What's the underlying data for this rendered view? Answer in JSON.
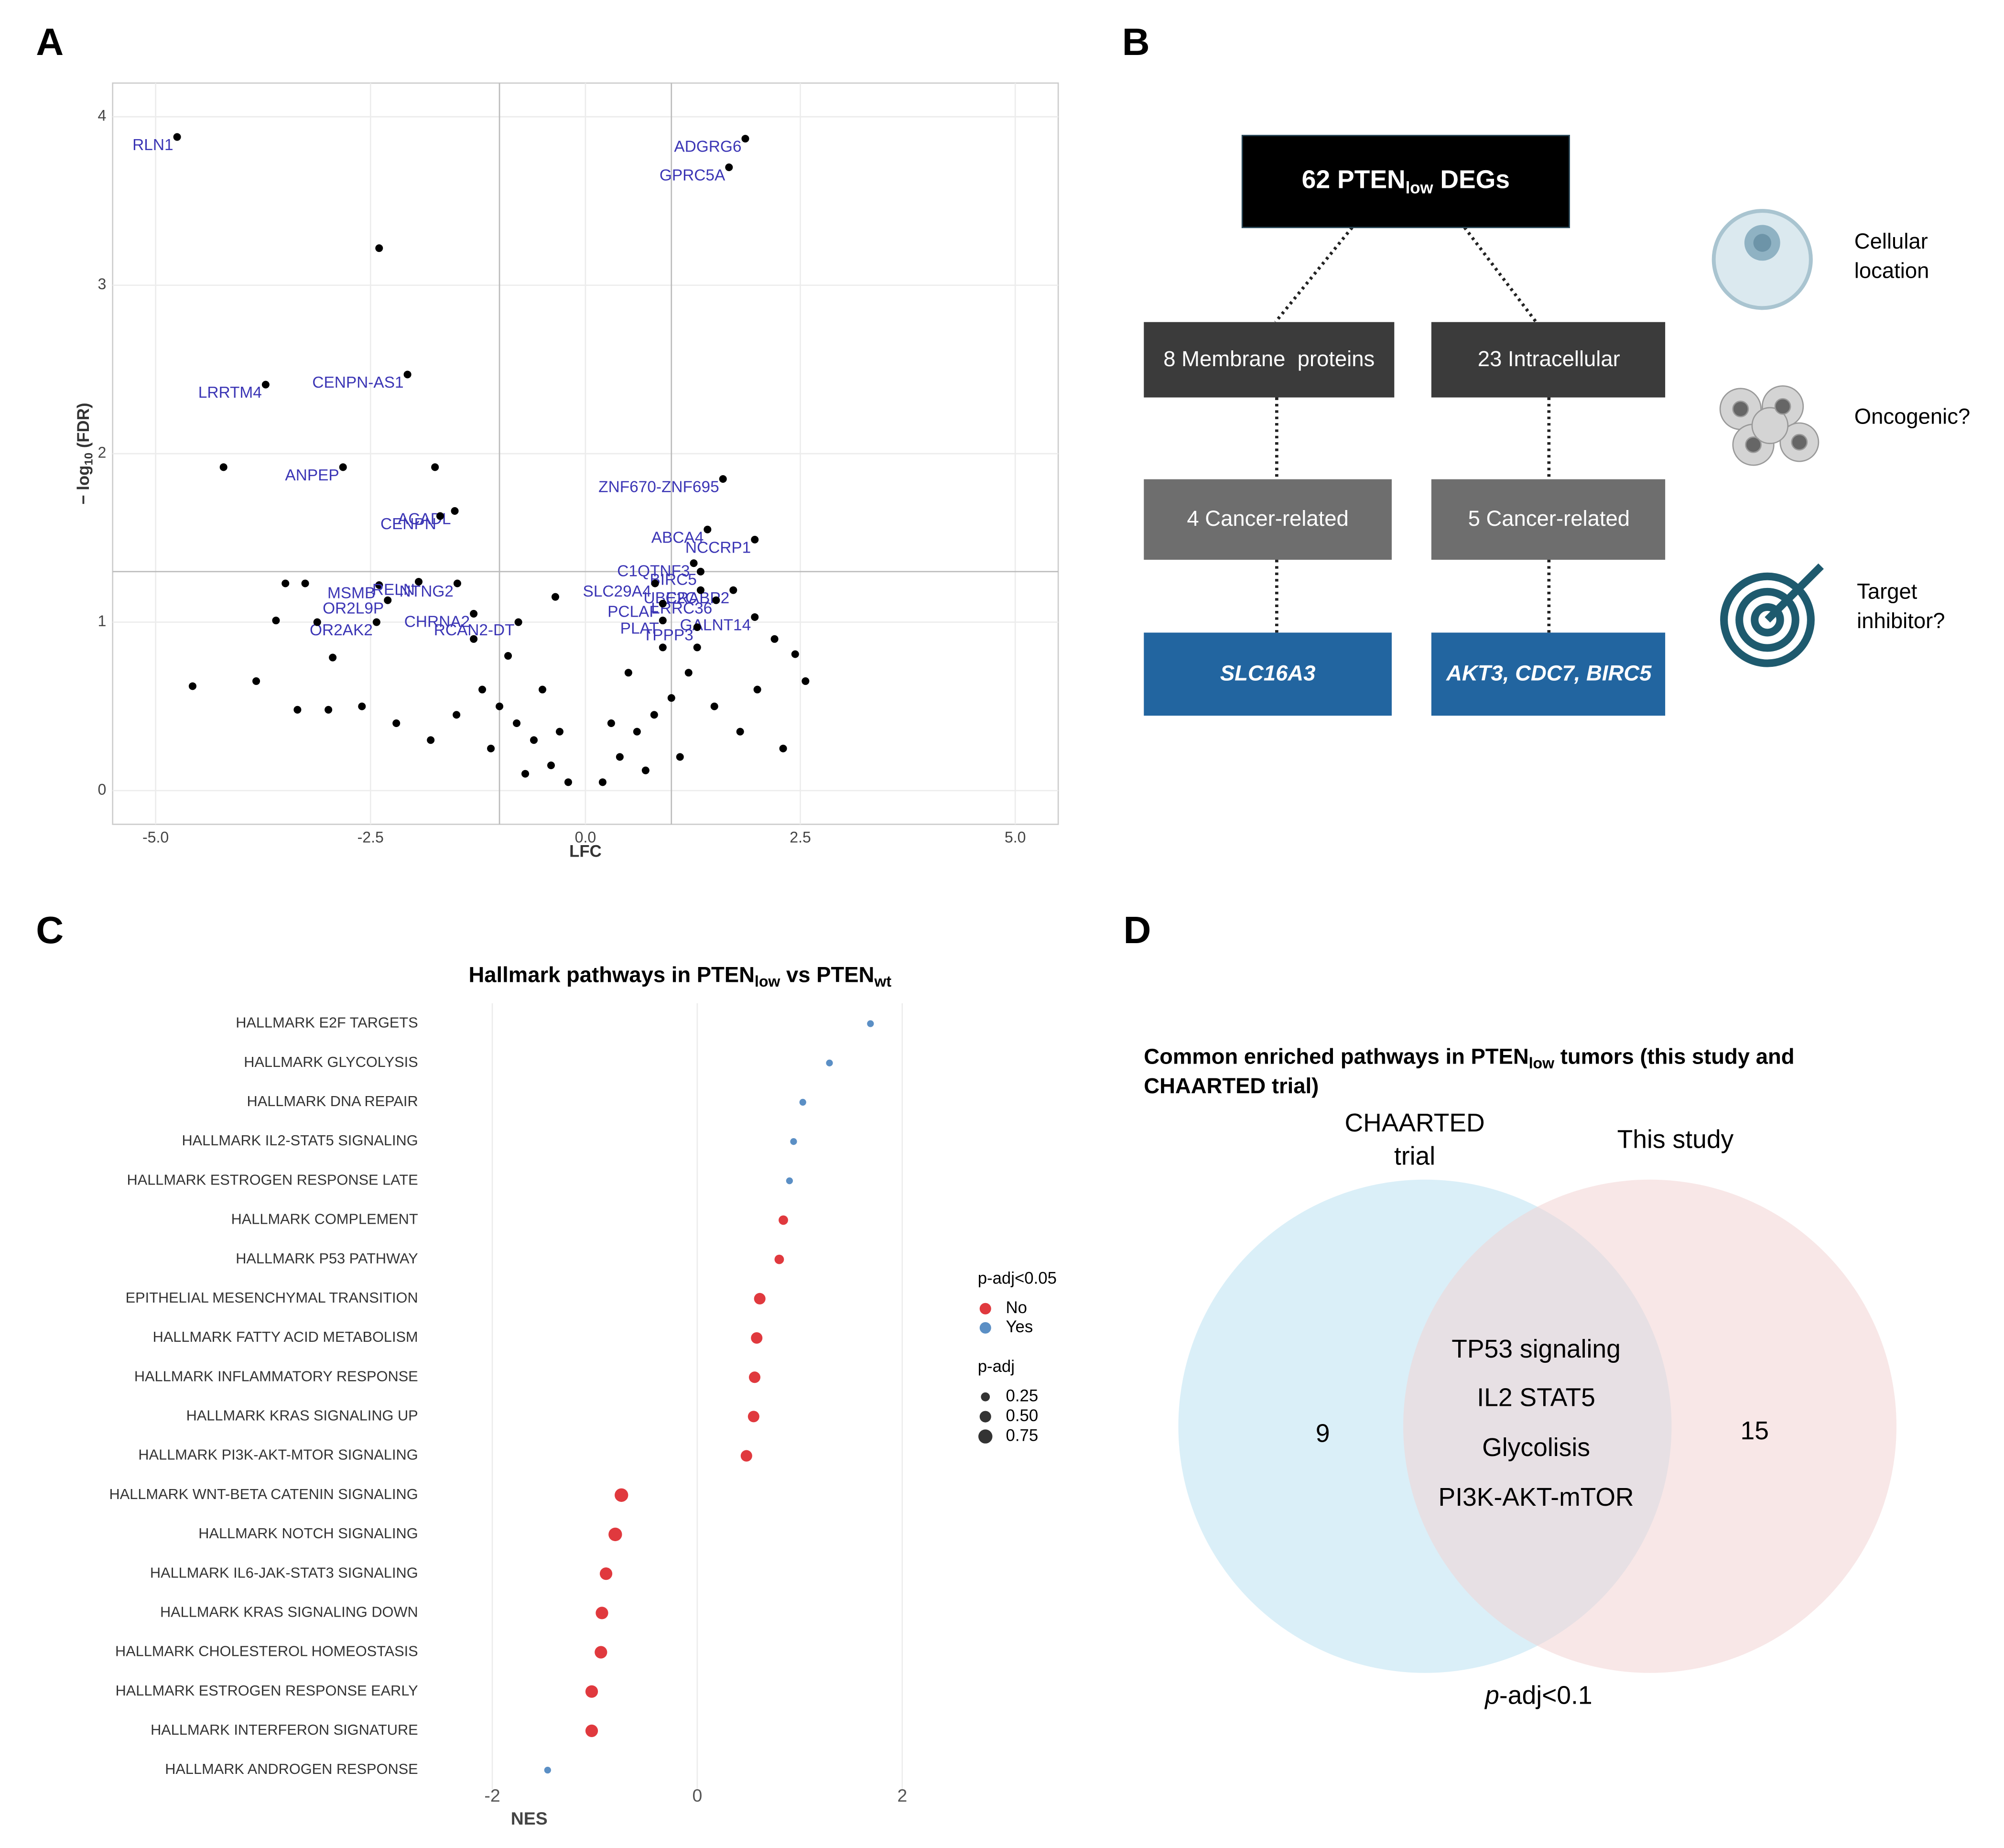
{
  "panel_labels": [
    "A",
    "B",
    "C",
    "D"
  ],
  "chart_data": [
    {
      "type": "scatter",
      "x_label": "LFC",
      "y_label": [
        "− log",
        "10",
        " (FDR)"
      ],
      "xlim": [
        -5.5,
        5.5
      ],
      "ylim": [
        -0.2,
        4.2
      ],
      "xticks": [
        {
          "value": -5,
          "label": "-5.0"
        },
        {
          "value": -2.5,
          "label": "-2.5"
        },
        {
          "value": 0,
          "label": "0.0"
        },
        {
          "value": 2.5,
          "label": "2.5"
        },
        {
          "value": 5,
          "label": "5.0"
        }
      ],
      "yticks": [
        0,
        1,
        2,
        3,
        4
      ],
      "grid": true,
      "color": "#000000",
      "label_color": "#3b35b5",
      "reference_lines": {
        "x": [
          -1,
          1
        ],
        "y": [
          1.3
        ]
      },
      "x": [
        -4.75,
        1.86,
        1.67,
        -3.72,
        -2.07,
        -2.82,
        -1.52,
        -1.69,
        1.6,
        1.42,
        1.97,
        1.26,
        1.34,
        0.81,
        1.72,
        1.34,
        1.52,
        0.9,
        1.97,
        0.9,
        1.3,
        -2.4,
        -1.94,
        -1.49,
        -2.3,
        -1.3,
        -2.43,
        -0.78,
        -2.4,
        -4.21,
        -1.75,
        -4.57,
        -3.83,
        -3.49,
        -3.26,
        -3.6,
        -3.12,
        -3.35,
        -2.99,
        2.56,
        2.44,
        2.3,
        -2.94,
        -0.2,
        0.2,
        -0.4,
        0.4,
        -0.6,
        0.6,
        -0.8,
        0.8,
        -1.0,
        1.0,
        -1.2,
        1.2,
        -1.5,
        1.5,
        -0.5,
        0.5,
        -0.9,
        0.9,
        -1.8,
        1.8,
        -2.2,
        2.0,
        -0.3,
        0.3,
        -1.1,
        1.1,
        -0.7,
        0.7,
        -1.3,
        1.3,
        -0.35,
        -2.6,
        2.2
      ],
      "values": [
        3.88,
        3.87,
        3.7,
        2.41,
        2.47,
        1.92,
        1.66,
        1.63,
        1.85,
        1.55,
        1.49,
        1.35,
        1.3,
        1.23,
        1.19,
        1.19,
        1.13,
        1.11,
        1.03,
        1.01,
        0.97,
        1.22,
        1.24,
        1.23,
        1.13,
        1.05,
        1.0,
        1.0,
        3.22,
        1.92,
        1.92,
        0.62,
        0.65,
        1.23,
        1.23,
        1.01,
        1.0,
        0.48,
        0.48,
        0.65,
        0.81,
        0.25,
        0.79,
        0.05,
        0.05,
        0.15,
        0.2,
        0.3,
        0.35,
        0.4,
        0.45,
        0.5,
        0.55,
        0.6,
        0.7,
        0.45,
        0.5,
        0.6,
        0.7,
        0.8,
        0.85,
        0.3,
        0.35,
        0.4,
        0.6,
        0.35,
        0.4,
        0.25,
        0.2,
        0.1,
        0.12,
        0.9,
        0.85,
        1.15,
        0.5,
        0.9
      ],
      "point_labels": [
        "RLN1",
        "ADGRG6",
        "GPRC5A",
        "LRRTM4",
        "CENPN-AS1",
        "ANPEP",
        "ACADL",
        "CENPN",
        "ZNF670-ZNF695",
        "ABCA4",
        "NCCRP1",
        "C1QTNF3",
        "BIRC5",
        "SLC29A4",
        "CRABP2",
        "UBE2C",
        "LRRC36",
        "PCLAF",
        "GALNT14",
        "PLAT",
        "TPPP3",
        "MSMB",
        "RELN",
        "NTNG2",
        "OR2L9P",
        "CHRNA2",
        "OR2AK2",
        "RCAN2-DT",
        null,
        null,
        null,
        null,
        null,
        null,
        null,
        null,
        null,
        null,
        null,
        null,
        null,
        null,
        null,
        null,
        null,
        null,
        null,
        null,
        null,
        null,
        null,
        null,
        null,
        null,
        null,
        null,
        null,
        null,
        null,
        null,
        null,
        null,
        null,
        null,
        null,
        null,
        null,
        null,
        null,
        null,
        null,
        null,
        null,
        null,
        null,
        null
      ]
    },
    {
      "type": "dot",
      "title": [
        "Hallmark pathways in  PTEN",
        "low",
        " vs PTEN",
        "wt"
      ],
      "x_label": "NES",
      "categories": [
        "HALLMARK E2F TARGETS",
        "HALLMARK GLYCOLYSIS",
        "HALLMARK DNA REPAIR",
        "HALLMARK IL2-STAT5 SIGNALING",
        "HALLMARK ESTROGEN RESPONSE LATE",
        "HALLMARK COMPLEMENT",
        "HALLMARK P53 PATHWAY",
        "EPITHELIAL MESENCHYMAL TRANSITION",
        "HALLMARK FATTY ACID METABOLISM",
        "HALLMARK INFLAMMATORY RESPONSE",
        "HALLMARK KRAS SIGNALING UP",
        "HALLMARK PI3K-AKT-MTOR SIGNALING",
        "HALLMARK WNT-BETA CATENIN SIGNALING",
        "HALLMARK NOTCH SIGNALING",
        "HALLMARK IL6-JAK-STAT3 SIGNALING",
        "HALLMARK KRAS SIGNALING DOWN",
        "HALLMARK CHOLESTEROL HOMEOSTASIS",
        "HALLMARK ESTROGEN RESPONSE EARLY",
        "HALLMARK INTERFERON SIGNATURE",
        "HALLMARK ANDROGEN RESPONSE"
      ],
      "values": [
        1.69,
        1.29,
        1.03,
        0.94,
        0.9,
        0.84,
        0.8,
        0.61,
        0.58,
        0.56,
        0.55,
        0.48,
        -0.74,
        -0.8,
        -0.89,
        -0.93,
        -0.94,
        -1.03,
        -1.03,
        -1.46
      ],
      "p_adj": [
        0.04,
        0.04,
        0.04,
        0.04,
        0.04,
        0.3,
        0.3,
        0.5,
        0.5,
        0.5,
        0.5,
        0.5,
        0.7,
        0.7,
        0.6,
        0.6,
        0.6,
        0.6,
        0.6,
        0.04
      ],
      "significant": [
        "Yes",
        "Yes",
        "Yes",
        "Yes",
        "Yes",
        "No",
        "No",
        "No",
        "No",
        "No",
        "No",
        "No",
        "No",
        "No",
        "No",
        "No",
        "No",
        "No",
        "No",
        "Yes"
      ],
      "xlim": [
        -2.5,
        2.4
      ],
      "xticks": [
        -2,
        0,
        2
      ],
      "grid": true,
      "legend": {
        "color_title": "p-adj<0.05",
        "color_levels": [
          "No",
          "Yes"
        ],
        "colors": [
          "#e0393e",
          "#5b8fc5"
        ],
        "size_title": "p-adj",
        "size_ticks": [
          0.25,
          {
            "value": 0.5,
            "label": "0.50"
          },
          0.75
        ]
      }
    }
  ],
  "diagram": {
    "root": [
      "62 PTEN",
      "low",
      " DEGs"
    ],
    "branches": [
      {
        "label": "8 Membrane  proteins",
        "filter": "4 Cancer-related",
        "genes": "SLC16A3"
      },
      {
        "label": "23 Intracellular",
        "filter": "5 Cancer-related",
        "genes": "AKT3, CDC7, BIRC5"
      }
    ],
    "criteria": [
      [
        "Cellular",
        "location"
      ],
      [
        "Oncogenic?"
      ],
      [
        "Target",
        "inhibitor?"
      ]
    ]
  },
  "venn": {
    "title": [
      "Common enriched pathways in PTEN",
      "low",
      " tumors (this study and",
      "CHAARTED trial)"
    ],
    "left": {
      "label": [
        "CHAARTED",
        "trial"
      ],
      "count": "9"
    },
    "right": {
      "label": [
        "This study"
      ],
      "count": "15"
    },
    "shared": [
      "TP53 signaling",
      "IL2 STAT5",
      "Glycolisis",
      "PI3K-AKT-mTOR"
    ],
    "note": [
      "p",
      "-adj<0.1"
    ]
  }
}
